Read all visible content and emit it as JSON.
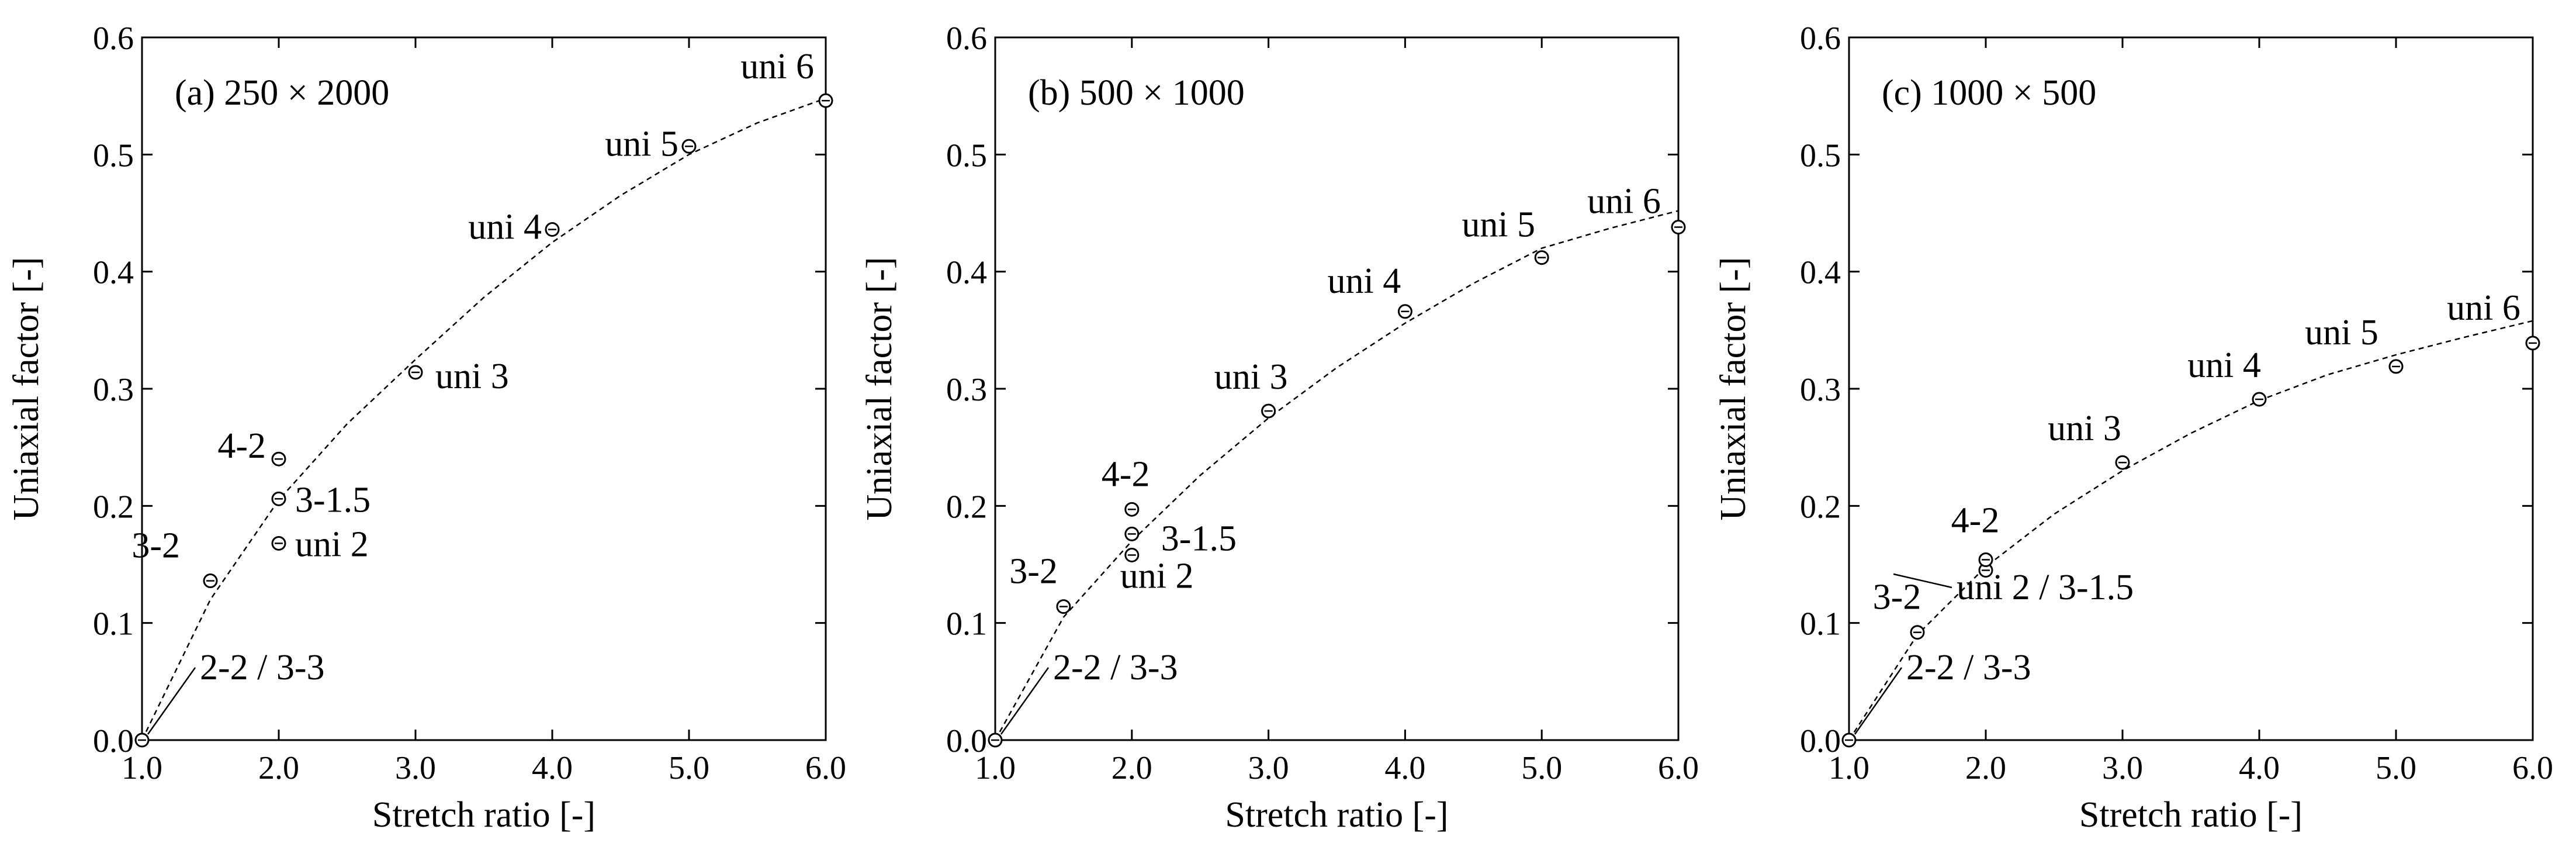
{
  "chart_data": [
    {
      "type": "scatter",
      "title": "(a) 250 × 2000",
      "xlabel": "Stretch ratio [-]",
      "ylabel": "Uniaxial factor [-]",
      "xlim": [
        1.0,
        6.0
      ],
      "ylim": [
        0.0,
        0.6
      ],
      "x_ticks": [
        "1.0",
        "2.0",
        "3.0",
        "4.0",
        "5.0",
        "6.0"
      ],
      "y_ticks": [
        "0.0",
        "0.1",
        "0.2",
        "0.3",
        "0.4",
        "0.5",
        "0.6"
      ],
      "grid": false,
      "points": [
        {
          "label": "2-2 / 3-3",
          "x": 1.0,
          "y": 0.0
        },
        {
          "label": "3-2",
          "x": 1.5,
          "y": 0.136
        },
        {
          "label": "uni 2",
          "x": 2.0,
          "y": 0.168
        },
        {
          "label": "3-1.5",
          "x": 2.0,
          "y": 0.206
        },
        {
          "label": "4-2",
          "x": 2.0,
          "y": 0.24
        },
        {
          "label": "uni 3",
          "x": 3.0,
          "y": 0.314
        },
        {
          "label": "uni 4",
          "x": 4.0,
          "y": 0.436
        },
        {
          "label": "uni 5",
          "x": 5.0,
          "y": 0.507
        },
        {
          "label": "uni 6",
          "x": 6.0,
          "y": 0.546
        }
      ],
      "fit_curve": {
        "style": "dashed",
        "x": [
          1.0,
          1.5,
          2.0,
          2.5,
          3.0,
          3.5,
          4.0,
          4.5,
          5.0,
          5.5,
          6.0
        ],
        "y": [
          0.0,
          0.12,
          0.205,
          0.27,
          0.325,
          0.378,
          0.425,
          0.465,
          0.5,
          0.527,
          0.548
        ]
      }
    },
    {
      "type": "scatter",
      "title": "(b) 500 × 1000",
      "xlabel": "Stretch ratio [-]",
      "ylabel": "Uniaxial factor [-]",
      "xlim": [
        1.0,
        6.0
      ],
      "ylim": [
        0.0,
        0.6
      ],
      "x_ticks": [
        "1.0",
        "2.0",
        "3.0",
        "4.0",
        "5.0",
        "6.0"
      ],
      "y_ticks": [
        "0.0",
        "0.1",
        "0.2",
        "0.3",
        "0.4",
        "0.5",
        "0.6"
      ],
      "grid": false,
      "points": [
        {
          "label": "2-2 / 3-3",
          "x": 1.0,
          "y": 0.0
        },
        {
          "label": "3-2",
          "x": 1.5,
          "y": 0.114
        },
        {
          "label": "uni 2",
          "x": 2.0,
          "y": 0.158
        },
        {
          "label": "3-1.5",
          "x": 2.0,
          "y": 0.176
        },
        {
          "label": "4-2",
          "x": 2.0,
          "y": 0.197
        },
        {
          "label": "uni 3",
          "x": 3.0,
          "y": 0.281
        },
        {
          "label": "uni 4",
          "x": 4.0,
          "y": 0.366
        },
        {
          "label": "uni 5",
          "x": 5.0,
          "y": 0.412
        },
        {
          "label": "uni 6",
          "x": 6.0,
          "y": 0.438
        }
      ],
      "fit_curve": {
        "style": "dashed",
        "x": [
          1.0,
          1.5,
          2.0,
          2.5,
          3.0,
          3.5,
          4.0,
          4.5,
          5.0,
          5.5,
          6.0
        ],
        "y": [
          0.0,
          0.105,
          0.17,
          0.226,
          0.275,
          0.318,
          0.356,
          0.39,
          0.42,
          0.437,
          0.452
        ]
      }
    },
    {
      "type": "scatter",
      "title": "(c) 1000 × 500",
      "xlabel": "Stretch ratio [-]",
      "ylabel": "Uniaxial factor [-]",
      "xlim": [
        1.0,
        6.0
      ],
      "ylim": [
        0.0,
        0.6
      ],
      "x_ticks": [
        "1.0",
        "2.0",
        "3.0",
        "4.0",
        "5.0",
        "6.0"
      ],
      "y_ticks": [
        "0.0",
        "0.1",
        "0.2",
        "0.3",
        "0.4",
        "0.5",
        "0.6"
      ],
      "grid": false,
      "points": [
        {
          "label": "2-2 / 3-3",
          "x": 1.0,
          "y": 0.0
        },
        {
          "label": "3-2",
          "x": 1.5,
          "y": 0.092
        },
        {
          "label": "uni 2 / 3-1.5",
          "x": 2.0,
          "y": 0.145
        },
        {
          "label": "4-2",
          "x": 2.0,
          "y": 0.154
        },
        {
          "label": "uni 3",
          "x": 3.0,
          "y": 0.237
        },
        {
          "label": "uni 4",
          "x": 4.0,
          "y": 0.291
        },
        {
          "label": "uni 5",
          "x": 5.0,
          "y": 0.319
        },
        {
          "label": "uni 6",
          "x": 6.0,
          "y": 0.339
        }
      ],
      "fit_curve": {
        "style": "dashed",
        "x": [
          1.0,
          1.5,
          2.0,
          2.5,
          3.0,
          3.5,
          4.0,
          4.5,
          5.0,
          5.5,
          6.0
        ],
        "y": [
          0.0,
          0.09,
          0.148,
          0.193,
          0.23,
          0.262,
          0.29,
          0.312,
          0.329,
          0.344,
          0.358
        ]
      }
    }
  ]
}
